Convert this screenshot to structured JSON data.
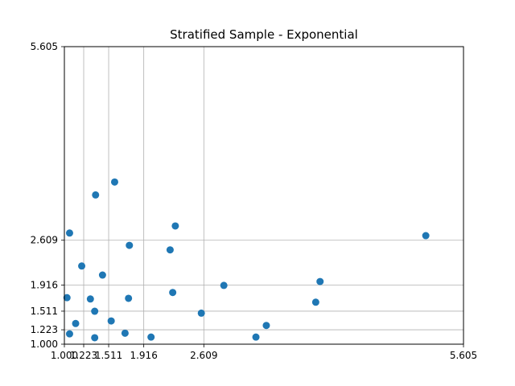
{
  "chart_data": {
    "type": "scatter",
    "title": "Stratified Sample - Exponential",
    "xlabel": "",
    "ylabel": "",
    "xlim": [
      1.0,
      5.605
    ],
    "ylim": [
      1.0,
      5.605
    ],
    "xticks": [
      1.0,
      1.223,
      1.511,
      1.916,
      2.609,
      5.605
    ],
    "yticks": [
      1.0,
      1.223,
      1.511,
      1.916,
      2.609,
      5.605
    ],
    "xtick_labels": [
      "1.000",
      "1.223",
      "1.511",
      "1.916",
      "2.609",
      "5.605"
    ],
    "ytick_labels": [
      "1.000",
      "1.223",
      "1.511",
      "1.916",
      "2.609",
      "5.605"
    ],
    "grid": "at tick positions",
    "marker_color": "#1f77b4",
    "points": [
      {
        "x": 1.58,
        "y": 3.51
      },
      {
        "x": 1.36,
        "y": 3.31
      },
      {
        "x": 2.28,
        "y": 2.83
      },
      {
        "x": 1.06,
        "y": 2.72
      },
      {
        "x": 1.75,
        "y": 2.53
      },
      {
        "x": 2.22,
        "y": 2.46
      },
      {
        "x": 1.2,
        "y": 2.21
      },
      {
        "x": 1.44,
        "y": 2.07
      },
      {
        "x": 2.84,
        "y": 1.91
      },
      {
        "x": 2.25,
        "y": 1.8
      },
      {
        "x": 1.03,
        "y": 1.72
      },
      {
        "x": 1.3,
        "y": 1.7
      },
      {
        "x": 1.74,
        "y": 1.71
      },
      {
        "x": 3.9,
        "y": 1.65
      },
      {
        "x": 3.95,
        "y": 1.97
      },
      {
        "x": 5.17,
        "y": 2.68
      },
      {
        "x": 1.35,
        "y": 1.51
      },
      {
        "x": 2.58,
        "y": 1.48
      },
      {
        "x": 1.13,
        "y": 1.32
      },
      {
        "x": 1.54,
        "y": 1.36
      },
      {
        "x": 3.33,
        "y": 1.29
      },
      {
        "x": 1.06,
        "y": 1.16
      },
      {
        "x": 1.7,
        "y": 1.17
      },
      {
        "x": 1.35,
        "y": 1.1
      },
      {
        "x": 2.0,
        "y": 1.11
      },
      {
        "x": 3.21,
        "y": 1.11
      }
    ]
  }
}
